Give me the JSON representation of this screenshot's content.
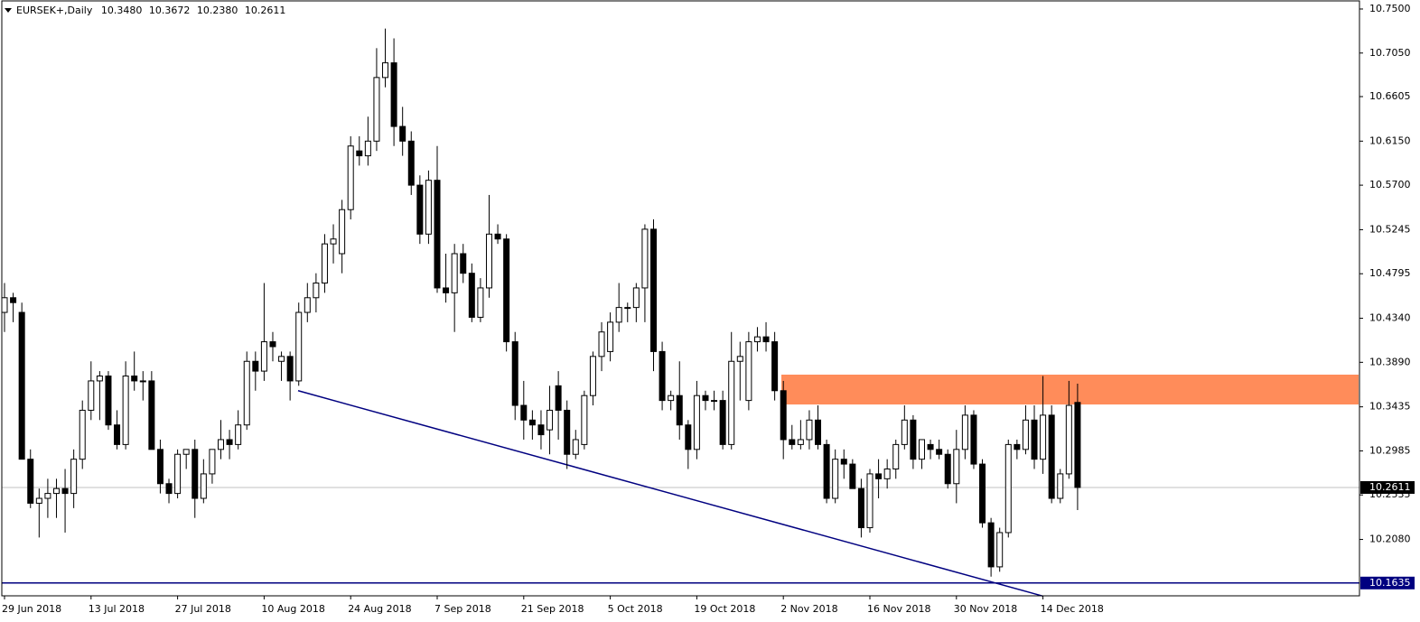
{
  "chart_data": {
    "type": "candlestick",
    "title": "EURSEK+,Daily",
    "ohlc_labels": [
      "10.3480",
      "10.3672",
      "10.2380",
      "10.2611"
    ],
    "categories": [
      "29 Jun 2018",
      null,
      null,
      null,
      null,
      null,
      null,
      null,
      null,
      null,
      "13 Jul 2018",
      null,
      null,
      null,
      null,
      null,
      null,
      null,
      null,
      null,
      "27 Jul 2018",
      null,
      null,
      null,
      null,
      null,
      null,
      null,
      null,
      null,
      "10 Aug 2018",
      null,
      null,
      null,
      null,
      null,
      null,
      null,
      null,
      null,
      "24 Aug 2018",
      null,
      null,
      null,
      null,
      null,
      null,
      null,
      null,
      null,
      "7 Sep 2018",
      null,
      null,
      null,
      null,
      null,
      null,
      null,
      null,
      null,
      "21 Sep 2018",
      null,
      null,
      null,
      null,
      null,
      null,
      null,
      null,
      null,
      "5 Oct 2018",
      null,
      null,
      null,
      null,
      null,
      null,
      null,
      null,
      null,
      "19 Oct 2018",
      null,
      null,
      null,
      null,
      null,
      null,
      null,
      null,
      null,
      "2 Nov 2018",
      null,
      null,
      null,
      null,
      null,
      null,
      null,
      null,
      null,
      "16 Nov 2018",
      null,
      null,
      null,
      null,
      null,
      null,
      null,
      null,
      null,
      "30 Nov 2018",
      null,
      null,
      null,
      null,
      null,
      null,
      null,
      null,
      null,
      "14 Dec 2018",
      null,
      null,
      null,
      null
    ],
    "open": [
      10.44,
      10.455,
      10.44,
      10.29,
      10.245,
      10.25,
      10.255,
      10.26,
      10.255,
      10.29,
      10.34,
      10.37,
      10.375,
      10.325,
      10.305,
      10.375,
      10.37,
      10.37,
      10.3,
      10.265,
      10.255,
      10.295,
      10.3,
      10.25,
      10.275,
      10.3,
      10.31,
      10.305,
      10.325,
      10.39,
      10.38,
      10.41,
      10.39,
      10.395,
      10.37,
      10.44,
      10.455,
      10.47,
      10.51,
      10.5,
      10.545,
      10.605,
      10.6,
      10.615,
      10.68,
      10.695,
      10.63,
      10.615,
      10.57,
      10.52,
      10.575,
      10.465,
      10.46,
      10.5,
      10.48,
      10.435,
      10.465,
      10.52,
      10.515,
      10.41,
      10.345,
      10.33,
      10.325,
      10.32,
      10.365,
      10.34,
      10.295,
      10.305,
      10.355,
      10.395,
      10.4,
      10.43,
      10.445,
      10.445,
      10.465,
      10.525,
      10.4,
      10.35,
      10.355,
      10.325,
      10.3,
      10.355,
      10.35,
      10.35,
      10.305,
      10.39,
      10.35,
      10.41,
      10.415,
      10.41,
      10.36,
      10.31,
      10.305,
      10.31,
      10.33,
      10.305,
      10.25,
      10.29,
      10.285,
      10.26,
      10.22,
      10.275,
      10.27,
      10.28,
      10.305,
      10.33,
      10.29,
      10.305,
      10.3,
      10.295,
      10.265,
      10.3,
      10.335,
      10.285,
      10.225,
      10.18,
      10.215,
      10.305,
      10.3,
      10.33,
      10.29,
      10.335,
      10.25,
      10.275,
      10.348
    ],
    "high": [
      10.47,
      10.46,
      10.45,
      10.3,
      10.26,
      10.27,
      10.27,
      10.28,
      10.3,
      10.35,
      10.39,
      10.38,
      10.38,
      10.34,
      10.39,
      10.4,
      10.38,
      10.38,
      10.31,
      10.27,
      10.3,
      10.3,
      10.31,
      10.29,
      10.3,
      10.33,
      10.32,
      10.34,
      10.4,
      10.4,
      10.47,
      10.42,
      10.4,
      10.4,
      10.45,
      10.47,
      10.48,
      10.52,
      10.53,
      10.555,
      10.62,
      10.62,
      10.64,
      10.71,
      10.73,
      10.72,
      10.65,
      10.625,
      10.58,
      10.585,
      10.61,
      10.5,
      10.51,
      10.51,
      10.49,
      10.475,
      10.56,
      10.53,
      10.52,
      10.42,
      10.37,
      10.34,
      10.34,
      10.365,
      10.38,
      10.35,
      10.32,
      10.36,
      10.4,
      10.43,
      10.44,
      10.47,
      10.45,
      10.47,
      10.53,
      10.535,
      10.41,
      10.36,
      10.39,
      10.33,
      10.37,
      10.36,
      10.36,
      10.36,
      10.42,
      10.41,
      10.42,
      10.425,
      10.43,
      10.42,
      10.37,
      10.325,
      10.33,
      10.34,
      10.345,
      10.31,
      10.3,
      10.3,
      10.29,
      10.27,
      10.28,
      10.29,
      10.29,
      10.31,
      10.345,
      10.335,
      10.31,
      10.31,
      10.31,
      10.3,
      10.32,
      10.345,
      10.34,
      10.29,
      10.23,
      10.22,
      10.31,
      10.31,
      10.345,
      10.345,
      10.375,
      10.345,
      10.28,
      10.37,
      10.3672
    ],
    "low": [
      10.42,
      10.43,
      10.29,
      10.24,
      10.21,
      10.23,
      10.23,
      10.215,
      10.24,
      10.28,
      10.33,
      10.33,
      10.32,
      10.3,
      10.3,
      10.36,
      10.35,
      10.3,
      10.255,
      10.245,
      10.25,
      10.28,
      10.23,
      10.245,
      10.265,
      10.29,
      10.29,
      10.3,
      10.32,
      10.36,
      10.37,
      10.39,
      10.37,
      10.35,
      10.365,
      10.43,
      10.44,
      10.46,
      10.49,
      10.48,
      10.535,
      10.59,
      10.59,
      10.605,
      10.67,
      10.61,
      10.6,
      10.56,
      10.51,
      10.51,
      10.46,
      10.45,
      10.42,
      10.47,
      10.43,
      10.43,
      10.455,
      10.51,
      10.4,
      10.33,
      10.31,
      10.31,
      10.3,
      10.295,
      10.31,
      10.28,
      10.29,
      10.3,
      10.345,
      10.38,
      10.39,
      10.42,
      10.43,
      10.43,
      10.43,
      10.38,
      10.34,
      10.34,
      10.31,
      10.28,
      10.29,
      10.34,
      10.34,
      10.3,
      10.3,
      10.35,
      10.34,
      10.4,
      10.4,
      10.35,
      10.29,
      10.3,
      10.3,
      10.3,
      10.3,
      10.245,
      10.245,
      10.27,
      10.26,
      10.21,
      10.215,
      10.25,
      10.26,
      10.27,
      10.3,
      10.28,
      10.28,
      10.29,
      10.29,
      10.26,
      10.245,
      10.29,
      10.28,
      10.22,
      10.17,
      10.175,
      10.21,
      10.29,
      10.295,
      10.28,
      10.275,
      10.245,
      10.245,
      10.27,
      10.238
    ],
    "close": [
      10.455,
      10.45,
      10.29,
      10.245,
      10.25,
      10.255,
      10.26,
      10.255,
      10.29,
      10.34,
      10.37,
      10.375,
      10.325,
      10.305,
      10.375,
      10.37,
      10.37,
      10.3,
      10.265,
      10.255,
      10.295,
      10.3,
      10.25,
      10.275,
      10.3,
      10.31,
      10.305,
      10.325,
      10.39,
      10.38,
      10.41,
      10.405,
      10.395,
      10.37,
      10.44,
      10.455,
      10.47,
      10.51,
      10.515,
      10.545,
      10.61,
      10.6,
      10.615,
      10.68,
      10.695,
      10.63,
      10.615,
      10.57,
      10.52,
      10.575,
      10.465,
      10.46,
      10.5,
      10.48,
      10.435,
      10.465,
      10.52,
      10.515,
      10.41,
      10.345,
      10.33,
      10.325,
      10.315,
      10.34,
      10.34,
      10.295,
      10.31,
      10.355,
      10.395,
      10.42,
      10.43,
      10.445,
      10.445,
      10.465,
      10.525,
      10.4,
      10.35,
      10.355,
      10.325,
      10.3,
      10.355,
      10.35,
      10.35,
      10.305,
      10.39,
      10.395,
      10.41,
      10.415,
      10.41,
      10.36,
      10.31,
      10.305,
      10.31,
      10.33,
      10.305,
      10.25,
      10.29,
      10.285,
      10.26,
      10.22,
      10.275,
      10.27,
      10.28,
      10.305,
      10.33,
      10.29,
      10.31,
      10.3,
      10.295,
      10.265,
      10.3,
      10.335,
      10.285,
      10.225,
      10.18,
      10.215,
      10.305,
      10.3,
      10.33,
      10.29,
      10.335,
      10.25,
      10.275,
      10.345,
      10.2611
    ],
    "ylim": [
      10.1504,
      10.7592
    ],
    "yticks": [
      {
        "value": 10.75,
        "label": "10.7500"
      },
      {
        "value": 10.705,
        "label": "10.7050"
      },
      {
        "value": 10.6605,
        "label": "10.6605"
      },
      {
        "value": 10.615,
        "label": "10.6150"
      },
      {
        "value": 10.57,
        "label": "10.5700"
      },
      {
        "value": 10.5245,
        "label": "10.5245"
      },
      {
        "value": 10.4795,
        "label": "10.4795"
      },
      {
        "value": 10.434,
        "label": "10.4340"
      },
      {
        "value": 10.389,
        "label": "10.3890"
      },
      {
        "value": 10.3435,
        "label": "10.3435"
      },
      {
        "value": 10.2985,
        "label": "10.2985"
      },
      {
        "value": 10.2535,
        "label": "10.2535"
      },
      {
        "value": 10.208,
        "label": "10.2080"
      }
    ],
    "zone": {
      "low": 10.3459,
      "high": 10.3764,
      "color": "#ff8c5a"
    },
    "trendline": {
      "from": 10.36,
      "to": 10.15,
      "color": "#000080"
    },
    "hline": {
      "value": 10.1635,
      "color": "#000080"
    },
    "price_line_color": "#c0c0c0"
  }
}
